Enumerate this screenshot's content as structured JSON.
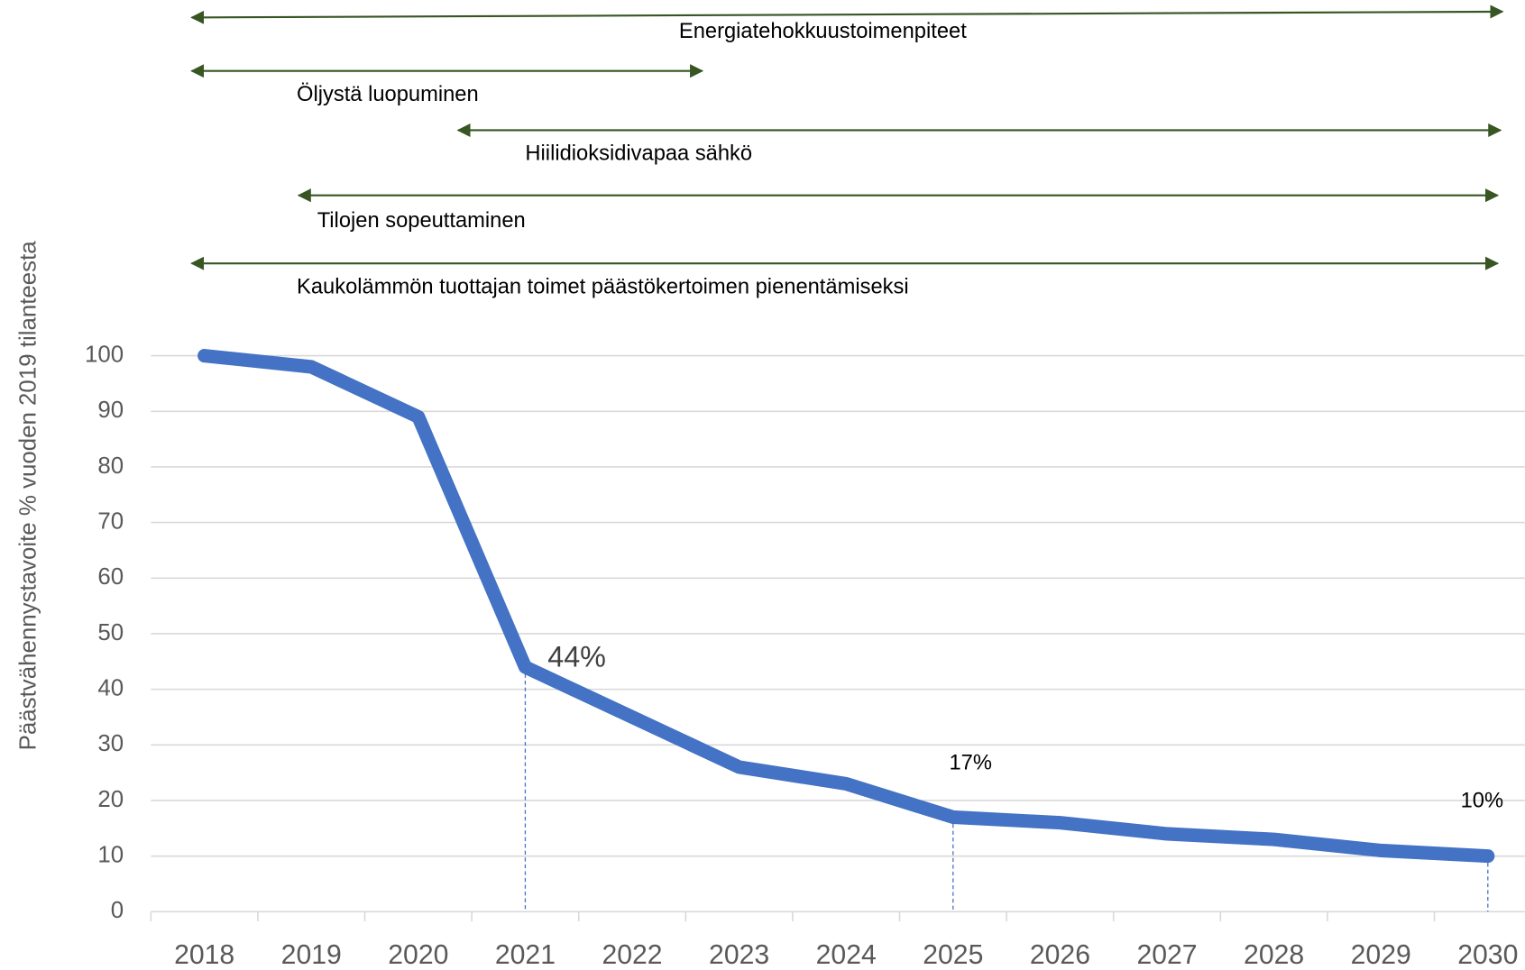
{
  "chart_data": {
    "type": "line",
    "ylabel": "Päästvähennystavoite % vuoden 2019 tilanteesta",
    "categories": [
      "2018",
      "2019",
      "2020",
      "2021",
      "2022",
      "2023",
      "2024",
      "2025",
      "2026",
      "2027",
      "2028",
      "2029",
      "2030"
    ],
    "values": [
      100,
      98,
      89,
      44,
      35,
      26,
      23,
      17,
      16,
      14,
      13,
      11,
      10
    ],
    "value_labels": [
      null,
      null,
      null,
      "44%",
      null,
      null,
      null,
      "17%",
      null,
      null,
      null,
      null,
      "10%"
    ],
    "color": "#4472c4",
    "ylim": [
      0,
      100
    ],
    "yticks": [
      0,
      10,
      20,
      30,
      40,
      50,
      60,
      70,
      80,
      90,
      100
    ],
    "grid": true,
    "annotations": [
      "Energiatehokkuustoimenpiteet",
      "Öljystä luopuminen",
      "Hiilidioksidivapaa sähkö",
      "Tilojen sopeuttaminen",
      "Kaukolämmön tuottajan toimet päästökertoimen pienentämiseksi"
    ],
    "annotation_color": "#375623"
  }
}
